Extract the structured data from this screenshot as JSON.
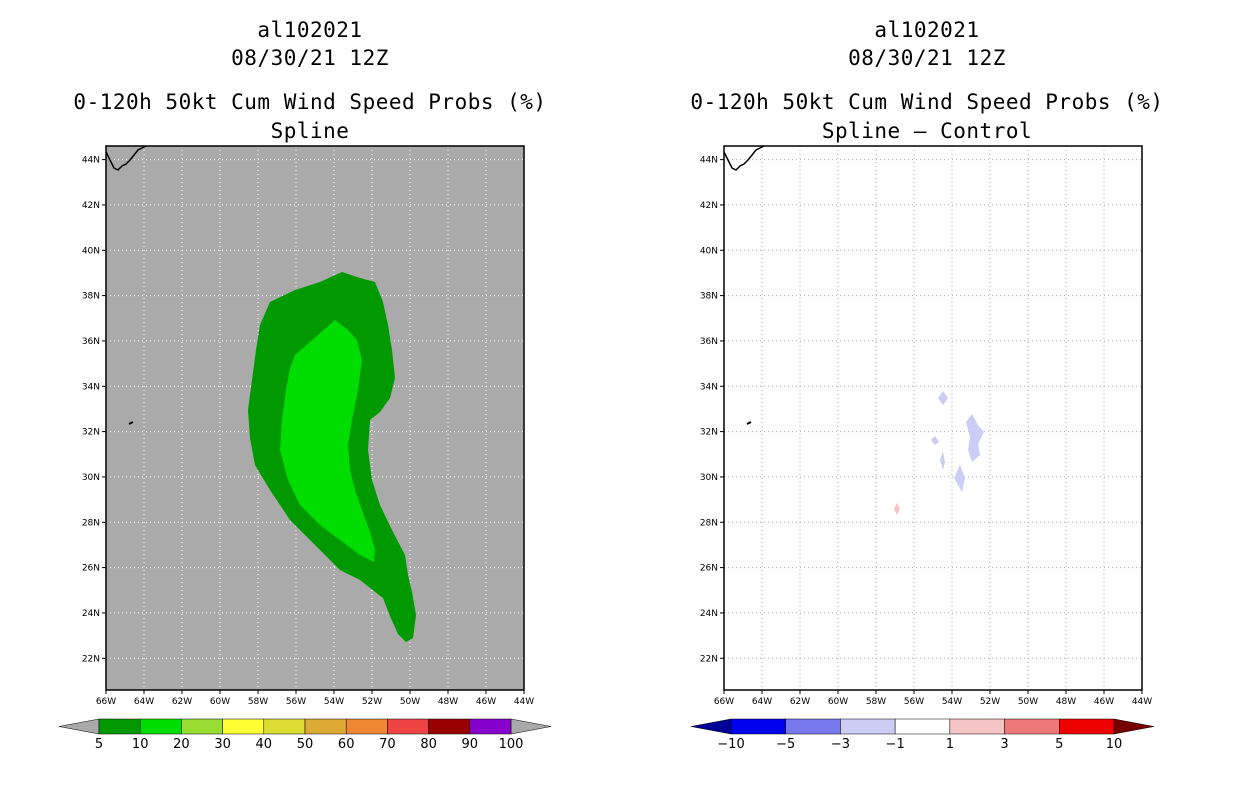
{
  "panels": [
    {
      "id": "spline",
      "storm_id": "al102021",
      "datetime": "08/30/21 12Z",
      "product": "0-120h 50kt Cum Wind Speed Probs (%)",
      "subtitle": "Spline"
    },
    {
      "id": "spline-control",
      "storm_id": "al102021",
      "datetime": "08/30/21 12Z",
      "product": "0-120h 50kt Cum Wind Speed Probs (%)",
      "subtitle": "Spline – Control"
    }
  ],
  "map": {
    "lat_labels": [
      "44N",
      "42N",
      "40N",
      "38N",
      "36N",
      "34N",
      "32N",
      "30N",
      "28N",
      "26N",
      "24N",
      "22N"
    ],
    "lon_labels": [
      "66W",
      "64W",
      "62W",
      "60W",
      "58W",
      "56W",
      "54W",
      "52W",
      "50W",
      "48W",
      "46W",
      "44W"
    ],
    "lat_range": [
      20.6,
      44.6
    ],
    "lon_range": [
      -66,
      -44
    ]
  },
  "legends": {
    "probability": {
      "labels": [
        "5",
        "10",
        "20",
        "30",
        "40",
        "50",
        "60",
        "70",
        "80",
        "90",
        "100"
      ],
      "colors": [
        "#009900",
        "#00dd00",
        "#99dd33",
        "#ffff33",
        "#dddd33",
        "#ddaa33",
        "#ee8833",
        "#ee4444",
        "#990000",
        "#8800cc"
      ],
      "low_end_color": "#aaaaaa",
      "high_end_color": "#aaaaaa"
    },
    "difference": {
      "labels": [
        "−10",
        "−5",
        "−3",
        "−1",
        "1",
        "3",
        "5",
        "10"
      ],
      "colors": [
        "#0000ee",
        "#7777ee",
        "#ccccf5",
        "#ffffff",
        "#f5c4c4",
        "#ee7777",
        "#ee0000"
      ],
      "low_end_color": "#000099",
      "high_end_color": "#770000"
    }
  },
  "colors": {
    "map_background": "#aaaaaa",
    "prob_5_fill": "#009900",
    "prob_10_fill": "#00dd00",
    "diff_negative_fill": "#ccccf5",
    "diff_positive_fill": "#f5c4c4"
  }
}
